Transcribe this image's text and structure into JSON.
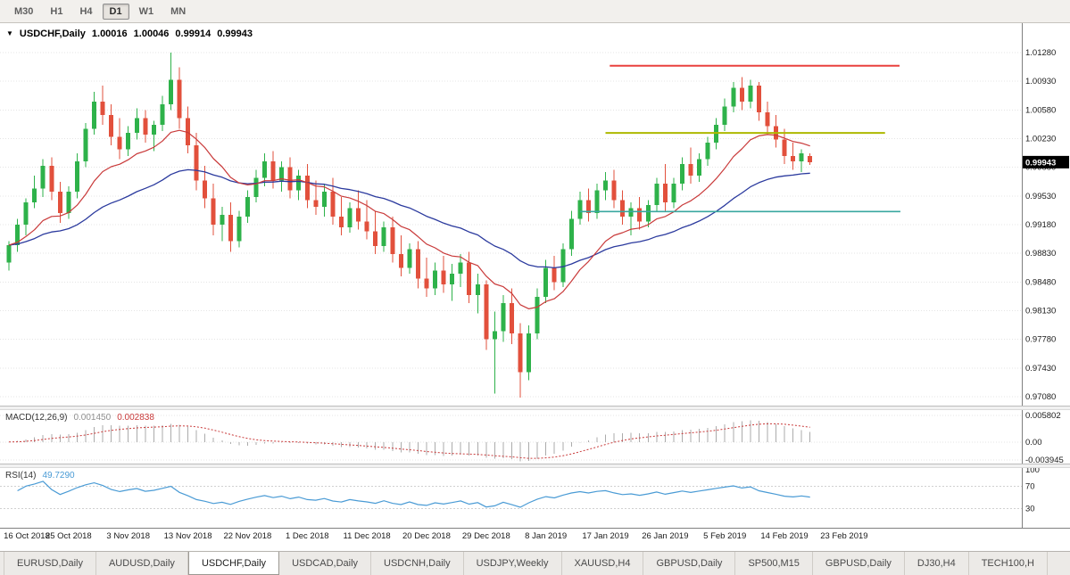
{
  "icons": {
    "collapse": "▼"
  },
  "toolbar": {
    "timeframes": [
      {
        "label": "M30",
        "active": false
      },
      {
        "label": "H1",
        "active": false
      },
      {
        "label": "H4",
        "active": false
      },
      {
        "label": "D1",
        "active": true
      },
      {
        "label": "W1",
        "active": false
      },
      {
        "label": "MN",
        "active": false
      }
    ]
  },
  "chart": {
    "symbol_label": "USDCHF,Daily",
    "ohlc": {
      "open": "1.00016",
      "high": "1.00046",
      "low": "0.99914",
      "close": "0.99943"
    },
    "current_price": "0.99943",
    "price_axis_labels": [
      "1.01280",
      "1.00930",
      "1.00580",
      "1.00230",
      "0.99880",
      "0.99530",
      "0.99180",
      "0.98830",
      "0.98480",
      "0.98130",
      "0.97780",
      "0.97430",
      "0.97080"
    ],
    "price_axis_top": 1.0128,
    "price_axis_bottom": 0.9708,
    "hlines": [
      {
        "name": "resistance-hline",
        "price": 1.0112,
        "day_start": 70.5,
        "day_end": 104.5,
        "color": "#e9403d",
        "width": 2
      },
      {
        "name": "pivot-hline",
        "price": 1.003,
        "day_start": 70.0,
        "day_end": 102.8,
        "color": "#adb800",
        "width": 2
      },
      {
        "name": "support-hline",
        "price": 0.9934,
        "day_start": 67.0,
        "day_end": 104.6,
        "color": "#39a7a0",
        "width": 1.6
      }
    ],
    "colors": {
      "up": "#2eb24a",
      "down": "#e2503c",
      "ma_fast": "#c93a3a",
      "ma_slow": "#2b3a9e",
      "grid": "#e4e4e4",
      "axis_text": "#1a1a1a"
    }
  },
  "chart_data": {
    "type": "candlestick",
    "title": "USDCHF Daily",
    "ma_fast_period": 13,
    "ma_slow_period": 34,
    "x_labels": [
      {
        "label": "16 Oct 2018",
        "day": 0
      },
      {
        "label": "25 Oct 2018",
        "day": 7
      },
      {
        "label": "3 Nov 2018",
        "day": 14
      },
      {
        "label": "13 Nov 2018",
        "day": 21
      },
      {
        "label": "22 Nov 2018",
        "day": 28
      },
      {
        "label": "1 Dec 2018",
        "day": 35
      },
      {
        "label": "11 Dec 2018",
        "day": 42
      },
      {
        "label": "20 Dec 2018",
        "day": 49
      },
      {
        "label": "29 Dec 2018",
        "day": 56
      },
      {
        "label": "8 Jan 2019",
        "day": 63
      },
      {
        "label": "17 Jan 2019",
        "day": 70
      },
      {
        "label": "26 Jan 2019",
        "day": 77
      },
      {
        "label": "5 Feb 2019",
        "day": 84
      },
      {
        "label": "14 Feb 2019",
        "day": 91
      },
      {
        "label": "23 Feb 2019",
        "day": 98
      }
    ],
    "candles": [
      [
        0.9872,
        0.9898,
        0.9862,
        0.9893
      ],
      [
        0.9893,
        0.9925,
        0.9885,
        0.9918
      ],
      [
        0.9918,
        0.995,
        0.9905,
        0.9945
      ],
      [
        0.9945,
        0.9978,
        0.9938,
        0.9962
      ],
      [
        0.9962,
        0.9998,
        0.9952,
        0.999
      ],
      [
        0.999,
        1.0,
        0.9948,
        0.9958
      ],
      [
        0.9958,
        0.997,
        0.992,
        0.9932
      ],
      [
        0.9932,
        0.9965,
        0.9925,
        0.9958
      ],
      [
        0.9958,
        1.0005,
        0.995,
        0.9995
      ],
      [
        0.9995,
        1.0042,
        0.9988,
        1.0035
      ],
      [
        1.0035,
        1.008,
        1.0028,
        1.0068
      ],
      [
        1.0068,
        1.0088,
        1.004,
        1.0052
      ],
      [
        1.0052,
        1.0065,
        1.0015,
        1.0025
      ],
      [
        1.0025,
        1.0048,
        0.9998,
        1.001
      ],
      [
        1.001,
        1.0038,
        1.0002,
        1.003
      ],
      [
        1.003,
        1.006,
        1.0022,
        1.0048
      ],
      [
        1.0048,
        1.0058,
        1.0018,
        1.0028
      ],
      [
        1.0028,
        1.0045,
        1.0008,
        1.004
      ],
      [
        1.004,
        1.0075,
        1.0032,
        1.0065
      ],
      [
        1.0065,
        1.0128,
        1.0058,
        1.0095
      ],
      [
        1.0095,
        1.011,
        1.0035,
        1.0048
      ],
      [
        1.0048,
        1.0062,
        1.0005,
        1.0015
      ],
      [
        1.0015,
        1.003,
        0.996,
        0.9972
      ],
      [
        0.9972,
        0.999,
        0.9938,
        0.995
      ],
      [
        0.995,
        0.9968,
        0.9905,
        0.9918
      ],
      [
        0.9918,
        0.994,
        0.9898,
        0.993
      ],
      [
        0.993,
        0.9945,
        0.9885,
        0.9898
      ],
      [
        0.9898,
        0.9935,
        0.989,
        0.9928
      ],
      [
        0.9928,
        0.996,
        0.992,
        0.9952
      ],
      [
        0.9952,
        0.9985,
        0.9945,
        0.9975
      ],
      [
        0.9975,
        1.0005,
        0.9965,
        0.9995
      ],
      [
        0.9995,
        1.0008,
        0.9962,
        0.9972
      ],
      [
        0.9972,
        0.9995,
        0.9958,
        0.9988
      ],
      [
        0.9988,
        1.0,
        0.995,
        0.996
      ],
      [
        0.996,
        0.9985,
        0.9948,
        0.9978
      ],
      [
        0.9978,
        0.9992,
        0.9938,
        0.9948
      ],
      [
        0.9948,
        0.9972,
        0.993,
        0.994
      ],
      [
        0.994,
        0.9968,
        0.9928,
        0.9958
      ],
      [
        0.9958,
        0.9975,
        0.9918,
        0.9928
      ],
      [
        0.9928,
        0.9952,
        0.9905,
        0.9915
      ],
      [
        0.9915,
        0.9945,
        0.9908,
        0.9938
      ],
      [
        0.9938,
        0.996,
        0.9912,
        0.9922
      ],
      [
        0.9922,
        0.9948,
        0.99,
        0.991
      ],
      [
        0.991,
        0.9935,
        0.9882,
        0.9892
      ],
      [
        0.9892,
        0.9922,
        0.9885,
        0.9915
      ],
      [
        0.9915,
        0.9928,
        0.9872,
        0.9882
      ],
      [
        0.9882,
        0.9905,
        0.9855,
        0.9865
      ],
      [
        0.9865,
        0.9895,
        0.9858,
        0.9888
      ],
      [
        0.9888,
        0.9898,
        0.984,
        0.9852
      ],
      [
        0.9852,
        0.9878,
        0.983,
        0.984
      ],
      [
        0.984,
        0.9872,
        0.9832,
        0.9862
      ],
      [
        0.9862,
        0.988,
        0.9835,
        0.9845
      ],
      [
        0.9845,
        0.987,
        0.9825,
        0.9858
      ],
      [
        0.9858,
        0.9882,
        0.9842,
        0.9872
      ],
      [
        0.9872,
        0.9885,
        0.9822,
        0.9832
      ],
      [
        0.9832,
        0.9858,
        0.981,
        0.9845
      ],
      [
        0.9845,
        0.985,
        0.9765,
        0.9778
      ],
      [
        0.9778,
        0.9812,
        0.9712,
        0.9788
      ],
      [
        0.9788,
        0.9832,
        0.9775,
        0.9822
      ],
      [
        0.9822,
        0.984,
        0.9772,
        0.9785
      ],
      [
        0.9785,
        0.9798,
        0.9707,
        0.9738
      ],
      [
        0.9738,
        0.9795,
        0.9728,
        0.9785
      ],
      [
        0.9785,
        0.984,
        0.9778,
        0.983
      ],
      [
        0.983,
        0.9875,
        0.9822,
        0.9865
      ],
      [
        0.9865,
        0.988,
        0.9838,
        0.9848
      ],
      [
        0.9848,
        0.9895,
        0.9842,
        0.9888
      ],
      [
        0.9888,
        0.9935,
        0.988,
        0.9925
      ],
      [
        0.9925,
        0.9958,
        0.9918,
        0.9948
      ],
      [
        0.9948,
        0.9962,
        0.9922,
        0.9932
      ],
      [
        0.9932,
        0.9968,
        0.9925,
        0.996
      ],
      [
        0.996,
        0.9982,
        0.9948,
        0.9972
      ],
      [
        0.9972,
        0.9985,
        0.9938,
        0.9948
      ],
      [
        0.9948,
        0.996,
        0.9918,
        0.9928
      ],
      [
        0.9928,
        0.9945,
        0.9905,
        0.9938
      ],
      [
        0.9938,
        0.9952,
        0.9912,
        0.9922
      ],
      [
        0.9922,
        0.9948,
        0.9915,
        0.9942
      ],
      [
        0.9942,
        0.9975,
        0.9935,
        0.9968
      ],
      [
        0.9968,
        0.9992,
        0.9935,
        0.9945
      ],
      [
        0.9945,
        0.9975,
        0.9938,
        0.9968
      ],
      [
        0.9968,
        1.0,
        0.996,
        0.9992
      ],
      [
        0.9992,
        1.0012,
        0.9968,
        0.9978
      ],
      [
        0.9978,
        1.0005,
        0.997,
        0.9998
      ],
      [
        0.9998,
        1.0025,
        0.999,
        1.0018
      ],
      [
        1.0018,
        1.0048,
        1.001,
        1.004
      ],
      [
        1.004,
        1.0072,
        1.0032,
        1.0062
      ],
      [
        1.0062,
        1.0092,
        1.0055,
        1.0085
      ],
      [
        1.0085,
        1.0098,
        1.0058,
        1.0068
      ],
      [
        1.0068,
        1.0095,
        1.006,
        1.0088
      ],
      [
        1.0088,
        1.0092,
        1.0045,
        1.0055
      ],
      [
        1.0055,
        1.0068,
        1.0028,
        1.0038
      ],
      [
        1.0038,
        1.0052,
        1.0012,
        1.0022
      ],
      [
        1.0022,
        1.0035,
        0.9992,
        1.0002
      ],
      [
        1.0002,
        1.0018,
        0.9985,
        0.9995
      ],
      [
        0.9995,
        1.001,
        0.9982,
        1.0005
      ],
      [
        1.0002,
        1.0005,
        0.9991,
        0.99943
      ]
    ]
  },
  "macd": {
    "label": "MACD(12,26,9)",
    "value_main": "0.001450",
    "value_signal": "0.002838",
    "axis_labels": [
      "0.005802",
      "0.00",
      "-0.003945"
    ],
    "axis_max": 0.005802,
    "axis_min": -0.003945,
    "colors": {
      "hist": "#ababab",
      "signal": "#c93a3a"
    }
  },
  "rsi": {
    "label": "RSI(14)",
    "value": "49.7290",
    "axis_labels": [
      "100",
      "70",
      "30"
    ],
    "levels": [
      70,
      30
    ],
    "color": "#4a9bd5"
  },
  "tabs": [
    {
      "label": "EURUSD,Daily",
      "active": false
    },
    {
      "label": "AUDUSD,Daily",
      "active": false
    },
    {
      "label": "USDCHF,Daily",
      "active": true
    },
    {
      "label": "USDCAD,Daily",
      "active": false
    },
    {
      "label": "USDCNH,Daily",
      "active": false
    },
    {
      "label": "USDJPY,Weekly",
      "active": false
    },
    {
      "label": "XAUUSD,H4",
      "active": false
    },
    {
      "label": "GBPUSD,Daily",
      "active": false
    },
    {
      "label": "SP500,M15",
      "active": false
    },
    {
      "label": "GBPUSD,Daily",
      "active": false
    },
    {
      "label": "DJ30,H4",
      "active": false
    },
    {
      "label": "TECH100,H",
      "active": false
    }
  ]
}
